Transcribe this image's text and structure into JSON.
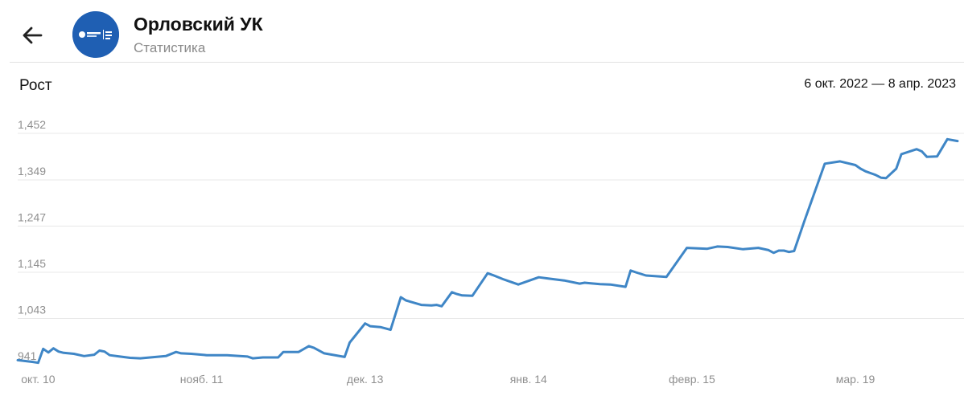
{
  "header": {
    "title": "Орловский УК",
    "subtitle": "Статистика",
    "back_icon": "arrow-left-icon",
    "avatar_icon": "group-logo"
  },
  "section": {
    "title": "Рост",
    "date_range": "6 окт. 2022 — 8 апр. 2023"
  },
  "colors": {
    "line": "#3f86c6",
    "grid": "#e8e8e8",
    "tick": "#8f8f8f",
    "avatar_bg": "#1f5fb3"
  },
  "chart_data": {
    "type": "line",
    "title": "",
    "xlabel": "",
    "ylabel": "",
    "y_ticks": [
      "1,452",
      "1,349",
      "1,247",
      "1,145",
      "1,043",
      "941"
    ],
    "y_tick_values": [
      1452,
      1349,
      1247,
      1145,
      1043,
      941
    ],
    "ylim": [
      941,
      1452
    ],
    "x_ticks": [
      "окт. 10",
      "нояб. 11",
      "дек. 13",
      "янв. 14",
      "февр. 15",
      "мар. 19"
    ],
    "x_tick_dates": [
      "2022-10-10",
      "2022-11-11",
      "2022-12-13",
      "2023-01-14",
      "2023-02-15",
      "2023-03-19"
    ],
    "xlim": [
      "2022-10-06",
      "2023-04-08"
    ],
    "grid": true,
    "series": [
      {
        "x": [
          "2022-10-06",
          "2022-10-09",
          "2022-10-10",
          "2022-10-11",
          "2022-10-12",
          "2022-10-13",
          "2022-10-14",
          "2022-10-15",
          "2022-10-17",
          "2022-10-19",
          "2022-10-21",
          "2022-10-22",
          "2022-10-23",
          "2022-10-24",
          "2022-10-26",
          "2022-10-28",
          "2022-10-30",
          "2022-11-04",
          "2022-11-06",
          "2022-11-07",
          "2022-11-09",
          "2022-11-12",
          "2022-11-16",
          "2022-11-20",
          "2022-11-21",
          "2022-11-23",
          "2022-11-26",
          "2022-11-27",
          "2022-11-30",
          "2022-12-02",
          "2022-12-03",
          "2022-12-05",
          "2022-12-09",
          "2022-12-10",
          "2022-12-11",
          "2022-12-13",
          "2022-12-14",
          "2022-12-16",
          "2022-12-18",
          "2022-12-20",
          "2022-12-21",
          "2022-12-24",
          "2022-12-26",
          "2022-12-27",
          "2022-12-28",
          "2022-12-30",
          "2022-12-31",
          "2023-01-01",
          "2023-01-03",
          "2023-01-06",
          "2023-01-07",
          "2023-01-09",
          "2023-01-12",
          "2023-01-16",
          "2023-01-18",
          "2023-01-21",
          "2023-01-24",
          "2023-01-25",
          "2023-01-26",
          "2023-01-28",
          "2023-01-30",
          "2023-02-02",
          "2023-02-03",
          "2023-02-04",
          "2023-02-06",
          "2023-02-10",
          "2023-02-14",
          "2023-02-18",
          "2023-02-20",
          "2023-02-22",
          "2023-02-25",
          "2023-02-28",
          "2023-03-02",
          "2023-03-03",
          "2023-03-04",
          "2023-03-05",
          "2023-03-06",
          "2023-03-07",
          "2023-03-09",
          "2023-03-13",
          "2023-03-16",
          "2023-03-19",
          "2023-03-20",
          "2023-03-21",
          "2023-03-22",
          "2023-03-23",
          "2023-03-24",
          "2023-03-25",
          "2023-03-27",
          "2023-03-28",
          "2023-03-31",
          "2023-04-01",
          "2023-04-02",
          "2023-04-04",
          "2023-04-06",
          "2023-04-08"
        ],
        "values": [
          951,
          947,
          945,
          976,
          968,
          977,
          970,
          967,
          965,
          960,
          963,
          972,
          970,
          962,
          959,
          956,
          955,
          960,
          969,
          966,
          965,
          962,
          962,
          959,
          955,
          957,
          957,
          969,
          969,
          982,
          978,
          966,
          958,
          990,
          1004,
          1032,
          1026,
          1024,
          1018,
          1090,
          1083,
          1073,
          1072,
          1073,
          1070,
          1101,
          1097,
          1094,
          1093,
          1143,
          1139,
          1130,
          1118,
          1134,
          1131,
          1127,
          1120,
          1122,
          1121,
          1119,
          1118,
          1113,
          1149,
          1145,
          1138,
          1135,
          1199,
          1197,
          1202,
          1201,
          1196,
          1199,
          1194,
          1188,
          1193,
          1193,
          1190,
          1192,
          1258,
          1385,
          1390,
          1382,
          1374,
          1368,
          1364,
          1360,
          1354,
          1353,
          1374,
          1406,
          1417,
          1412,
          1400,
          1401,
          1439,
          1435
        ]
      }
    ]
  }
}
